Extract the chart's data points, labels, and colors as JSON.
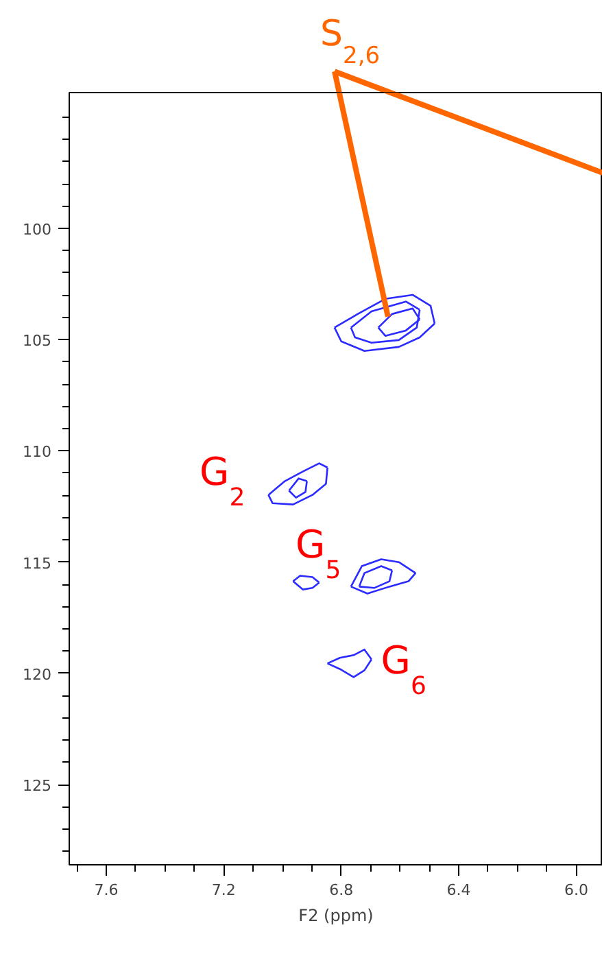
{
  "chart_data": {
    "type": "line",
    "xlabel": "F2 (ppm)",
    "xlim": [
      7.726,
      5.91
    ],
    "ylim": [
      128.6,
      93.9
    ],
    "xticks": [
      {
        "value": 7.7,
        "label": null
      },
      7.6,
      {
        "value": 7.5,
        "label": null
      },
      {
        "value": 7.4,
        "label": null
      },
      {
        "value": 7.3,
        "label": null
      },
      7.2,
      {
        "value": 7.1,
        "label": null
      },
      {
        "value": 7.0,
        "label": null
      },
      {
        "value": 6.9,
        "label": null
      },
      6.8,
      {
        "value": 6.7,
        "label": null
      },
      {
        "value": 6.6,
        "label": null
      },
      {
        "value": 6.5,
        "label": null
      },
      6.4,
      {
        "value": 6.3,
        "label": null
      },
      {
        "value": 6.2,
        "label": null
      },
      {
        "value": 6.1,
        "label": null
      },
      {
        "value": 6,
        "label": "6.0"
      }
    ],
    "yticks": [
      {
        "value": 95,
        "label": null
      },
      {
        "value": 96,
        "label": null
      },
      {
        "value": 97,
        "label": null
      },
      {
        "value": 98,
        "label": null
      },
      {
        "value": 99,
        "label": null
      },
      100,
      {
        "value": 101,
        "label": null
      },
      {
        "value": 102,
        "label": null
      },
      {
        "value": 103,
        "label": null
      },
      {
        "value": 104,
        "label": null
      },
      105,
      {
        "value": 106,
        "label": null
      },
      {
        "value": 107,
        "label": null
      },
      {
        "value": 108,
        "label": null
      },
      {
        "value": 109,
        "label": null
      },
      110,
      {
        "value": 111,
        "label": null
      },
      {
        "value": 112,
        "label": null
      },
      {
        "value": 113,
        "label": null
      },
      {
        "value": 114,
        "label": null
      },
      115,
      {
        "value": 116,
        "label": null
      },
      {
        "value": 117,
        "label": null
      },
      {
        "value": 118,
        "label": null
      },
      {
        "value": 119,
        "label": null
      },
      120,
      {
        "value": 121,
        "label": null
      },
      {
        "value": 122,
        "label": null
      },
      {
        "value": 123,
        "label": null
      },
      {
        "value": 124,
        "label": null
      },
      125,
      {
        "value": 126,
        "label": null
      },
      {
        "value": 127,
        "label": null
      },
      {
        "value": 128,
        "label": null
      }
    ],
    "grid": false,
    "series": [
      {
        "color": "#2b2bff",
        "x": [
          6.823,
          6.744,
          6.65,
          6.557,
          6.496,
          6.482
        ],
        "values": [
          104.46,
          103.85,
          103.17,
          102.99,
          103.48,
          104.28
        ]
      },
      {
        "color": "#2b2bff",
        "x": [
          6.482,
          6.533,
          6.604,
          6.721,
          6.8,
          6.823
        ],
        "values": [
          104.28,
          104.9,
          105.33,
          105.51,
          105.08,
          104.46
        ]
      },
      {
        "color": "#2b2bff",
        "x": [
          6.767,
          6.697,
          6.58,
          6.533
        ],
        "values": [
          104.46,
          103.73,
          103.29,
          103.66
        ]
      },
      {
        "color": "#2b2bff",
        "x": [
          6.533,
          6.543,
          6.604,
          6.697,
          6.753,
          6.767
        ],
        "values": [
          103.66,
          104.46,
          105.02,
          105.14,
          104.9,
          104.46
        ]
      },
      {
        "color": "#2b2bff",
        "x": [
          6.674,
          6.627,
          6.557,
          6.533
        ],
        "values": [
          104.46,
          103.85,
          103.6,
          104.09
        ]
      },
      {
        "color": "#2b2bff",
        "x": [
          6.533,
          6.58,
          6.65,
          6.674
        ],
        "values": [
          104.09,
          104.59,
          104.83,
          104.46
        ]
      },
      {
        "color": "#2b2bff",
        "x": [
          7.048,
          6.992,
          6.931,
          6.875,
          6.847
        ],
        "values": [
          111.98,
          111.36,
          110.93,
          110.56,
          110.75
        ]
      },
      {
        "color": "#2b2bff",
        "x": [
          6.847,
          6.852,
          6.898,
          6.964,
          7.034,
          7.048
        ],
        "values": [
          110.75,
          111.48,
          111.98,
          112.41,
          112.35,
          111.98
        ]
      },
      {
        "color": "#2b2bff",
        "x": [
          6.978,
          6.945,
          6.917
        ],
        "values": [
          111.79,
          111.24,
          111.36
        ]
      },
      {
        "color": "#2b2bff",
        "x": [
          6.917,
          6.922,
          6.954,
          6.978
        ],
        "values": [
          111.36,
          111.85,
          112.1,
          111.79
        ]
      },
      {
        "color": "#2b2bff",
        "x": [
          6.964,
          6.94,
          6.898,
          6.875
        ],
        "values": [
          115.86,
          115.61,
          115.67,
          115.92
        ]
      },
      {
        "color": "#2b2bff",
        "x": [
          6.875,
          6.898,
          6.931,
          6.964
        ],
        "values": [
          115.92,
          116.16,
          116.23,
          115.86
        ]
      },
      {
        "color": "#2b2bff",
        "x": [
          6.767,
          6.73,
          6.664,
          6.604,
          6.547
        ],
        "values": [
          116.1,
          115.18,
          114.87,
          115.0,
          115.49
        ]
      },
      {
        "color": "#2b2bff",
        "x": [
          6.547,
          6.571,
          6.636,
          6.711,
          6.767
        ],
        "values": [
          115.49,
          115.86,
          116.1,
          116.41,
          116.1
        ]
      },
      {
        "color": "#2b2bff",
        "x": [
          6.739,
          6.721,
          6.664,
          6.627
        ],
        "values": [
          116.1,
          115.49,
          115.18,
          115.37
        ]
      },
      {
        "color": "#2b2bff",
        "x": [
          6.627,
          6.636,
          6.688,
          6.739
        ],
        "values": [
          115.37,
          115.86,
          116.16,
          116.1
        ]
      },
      {
        "color": "#2b2bff",
        "x": [
          6.847,
          6.805,
          6.758,
          6.721,
          6.697
        ],
        "values": [
          119.55,
          119.3,
          119.18,
          118.93,
          119.37
        ]
      },
      {
        "color": "#2b2bff",
        "x": [
          6.697,
          6.721,
          6.758,
          6.805,
          6.847
        ],
        "values": [
          119.37,
          119.86,
          120.17,
          119.8,
          119.55
        ]
      }
    ],
    "annotations": [
      {
        "text": "S$_{2,6}$",
        "x": 6.641,
        "y": 103.97
      },
      "G$_{2}$",
      "G$_{5}$",
      "G$_{6}$"
    ]
  }
}
